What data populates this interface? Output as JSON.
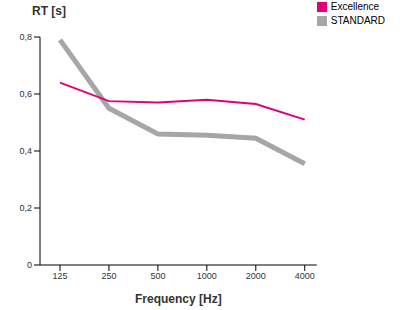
{
  "chart_data": {
    "type": "line",
    "x_label": "Frequency [Hz]",
    "y_label": "RT [s]",
    "categories": [
      "125",
      "250",
      "500",
      "1000",
      "2000",
      "4000"
    ],
    "series": [
      {
        "name": "STANDARD",
        "color": "#a6a6a6",
        "values": [
          0.79,
          0.55,
          0.46,
          0.455,
          0.445,
          0.355
        ]
      },
      {
        "name": "Excellence",
        "color": "#e2007a",
        "values": [
          0.64,
          0.575,
          0.57,
          0.58,
          0.565,
          0.51
        ]
      }
    ],
    "ylim": [
      0,
      0.8
    ],
    "yticks": [
      0,
      {
        "value": 0.2,
        "label": "0,2"
      },
      {
        "value": 0.4,
        "label": "0,4"
      },
      {
        "value": 0.6,
        "label": "0,6"
      },
      {
        "value": 0.8,
        "label": "0,8"
      }
    ],
    "grid": false,
    "legend": "upper right"
  }
}
